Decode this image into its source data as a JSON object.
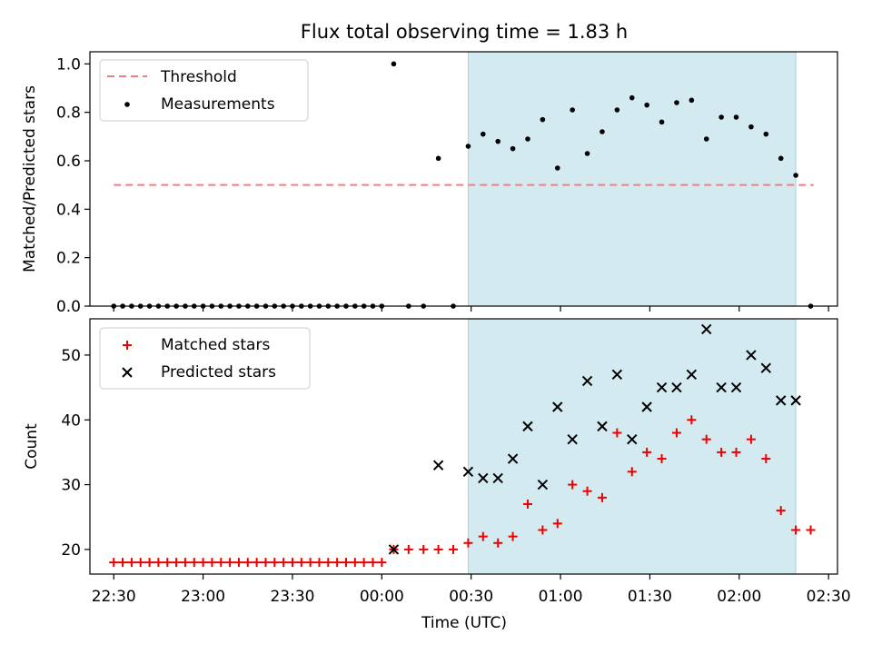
{
  "chart_data": [
    {
      "type": "scatter",
      "title": "Flux total observing time = 1.83 h",
      "xlabel": "",
      "ylabel": "Matched/Predicted stars",
      "ylim": [
        0,
        1.05
      ],
      "yticks": [
        "0.0",
        "0.2",
        "0.4",
        "0.6",
        "0.8",
        "1.0"
      ],
      "xlim": [
        "22:22",
        "02:33"
      ],
      "grid": false,
      "legend_position": "top-left",
      "highlight": {
        "x_start": "00:29",
        "x_end": "02:19",
        "color": "#d4eaf1"
      },
      "threshold": {
        "name": "Threshold",
        "value": 0.5,
        "x_start": "22:30",
        "x_end": "02:25",
        "color": "#f08080"
      },
      "series": [
        {
          "name": "Measurements",
          "color": "#000000",
          "marker": "dot",
          "points": [
            [
              "22:30",
              0
            ],
            [
              "22:33",
              0
            ],
            [
              "22:36",
              0
            ],
            [
              "22:39",
              0
            ],
            [
              "22:42",
              0
            ],
            [
              "22:45",
              0
            ],
            [
              "22:48",
              0
            ],
            [
              "22:51",
              0
            ],
            [
              "22:54",
              0
            ],
            [
              "22:57",
              0
            ],
            [
              "23:00",
              0
            ],
            [
              "23:03",
              0
            ],
            [
              "23:06",
              0
            ],
            [
              "23:09",
              0
            ],
            [
              "23:12",
              0
            ],
            [
              "23:15",
              0
            ],
            [
              "23:18",
              0
            ],
            [
              "23:21",
              0
            ],
            [
              "23:24",
              0
            ],
            [
              "23:27",
              0
            ],
            [
              "23:30",
              0
            ],
            [
              "23:33",
              0
            ],
            [
              "23:36",
              0
            ],
            [
              "23:39",
              0
            ],
            [
              "23:42",
              0
            ],
            [
              "23:45",
              0
            ],
            [
              "23:48",
              0
            ],
            [
              "23:51",
              0
            ],
            [
              "23:54",
              0
            ],
            [
              "23:57",
              0
            ],
            [
              "00:00",
              0
            ],
            [
              "00:04",
              1.0
            ],
            [
              "00:09",
              0
            ],
            [
              "00:14",
              0
            ],
            [
              "00:19",
              0.61
            ],
            [
              "00:24",
              0
            ],
            [
              "00:29",
              0.66
            ],
            [
              "00:34",
              0.71
            ],
            [
              "00:39",
              0.68
            ],
            [
              "00:44",
              0.65
            ],
            [
              "00:49",
              0.69
            ],
            [
              "00:54",
              0.77
            ],
            [
              "00:59",
              0.57
            ],
            [
              "01:04",
              0.81
            ],
            [
              "01:09",
              0.63
            ],
            [
              "01:14",
              0.72
            ],
            [
              "01:19",
              0.81
            ],
            [
              "01:24",
              0.86
            ],
            [
              "01:29",
              0.83
            ],
            [
              "01:34",
              0.76
            ],
            [
              "01:39",
              0.84
            ],
            [
              "01:44",
              0.85
            ],
            [
              "01:49",
              0.69
            ],
            [
              "01:54",
              0.78
            ],
            [
              "01:59",
              0.78
            ],
            [
              "02:04",
              0.74
            ],
            [
              "02:09",
              0.71
            ],
            [
              "02:14",
              0.61
            ],
            [
              "02:19",
              0.54
            ],
            [
              "02:24",
              0
            ]
          ]
        }
      ]
    },
    {
      "type": "scatter",
      "title": "",
      "xlabel": "Time (UTC)",
      "ylabel": "Count",
      "ylim": [
        16.2,
        55.6
      ],
      "yticks": [
        "20",
        "30",
        "40",
        "50"
      ],
      "xticks": [
        "22:30",
        "23:00",
        "23:30",
        "00:00",
        "00:30",
        "01:00",
        "01:30",
        "02:00",
        "02:30"
      ],
      "xlim": [
        "22:22",
        "02:33"
      ],
      "grid": false,
      "legend_position": "top-left",
      "highlight": {
        "x_start": "00:29",
        "x_end": "02:19",
        "color": "#d4eaf1"
      },
      "series": [
        {
          "name": "Matched stars",
          "color": "#ee0000",
          "marker": "plus",
          "points": [
            [
              "22:30",
              18
            ],
            [
              "22:33",
              18
            ],
            [
              "22:36",
              18
            ],
            [
              "22:39",
              18
            ],
            [
              "22:42",
              18
            ],
            [
              "22:45",
              18
            ],
            [
              "22:48",
              18
            ],
            [
              "22:51",
              18
            ],
            [
              "22:54",
              18
            ],
            [
              "22:57",
              18
            ],
            [
              "23:00",
              18
            ],
            [
              "23:03",
              18
            ],
            [
              "23:06",
              18
            ],
            [
              "23:09",
              18
            ],
            [
              "23:12",
              18
            ],
            [
              "23:15",
              18
            ],
            [
              "23:18",
              18
            ],
            [
              "23:21",
              18
            ],
            [
              "23:24",
              18
            ],
            [
              "23:27",
              18
            ],
            [
              "23:30",
              18
            ],
            [
              "23:33",
              18
            ],
            [
              "23:36",
              18
            ],
            [
              "23:39",
              18
            ],
            [
              "23:42",
              18
            ],
            [
              "23:45",
              18
            ],
            [
              "23:48",
              18
            ],
            [
              "23:51",
              18
            ],
            [
              "23:54",
              18
            ],
            [
              "23:57",
              18
            ],
            [
              "00:00",
              18
            ],
            [
              "00:04",
              20
            ],
            [
              "00:09",
              20
            ],
            [
              "00:14",
              20
            ],
            [
              "00:19",
              20
            ],
            [
              "00:24",
              20
            ],
            [
              "00:29",
              21
            ],
            [
              "00:34",
              22
            ],
            [
              "00:39",
              21
            ],
            [
              "00:44",
              22
            ],
            [
              "00:49",
              27
            ],
            [
              "00:54",
              23
            ],
            [
              "00:59",
              24
            ],
            [
              "01:04",
              30
            ],
            [
              "01:09",
              29
            ],
            [
              "01:14",
              28
            ],
            [
              "01:19",
              38
            ],
            [
              "01:24",
              32
            ],
            [
              "01:29",
              35
            ],
            [
              "01:34",
              34
            ],
            [
              "01:39",
              38
            ],
            [
              "01:44",
              40
            ],
            [
              "01:49",
              37
            ],
            [
              "01:54",
              35
            ],
            [
              "01:59",
              35
            ],
            [
              "02:04",
              37
            ],
            [
              "02:09",
              34
            ],
            [
              "02:14",
              26
            ],
            [
              "02:19",
              23
            ],
            [
              "02:24",
              23
            ]
          ]
        },
        {
          "name": "Predicted stars",
          "color": "#000000",
          "marker": "x",
          "points": [
            [
              "00:04",
              20
            ],
            [
              "00:19",
              33
            ],
            [
              "00:29",
              32
            ],
            [
              "00:34",
              31
            ],
            [
              "00:39",
              31
            ],
            [
              "00:44",
              34
            ],
            [
              "00:49",
              39
            ],
            [
              "00:54",
              30
            ],
            [
              "00:59",
              42
            ],
            [
              "01:04",
              37
            ],
            [
              "01:09",
              46
            ],
            [
              "01:14",
              39
            ],
            [
              "01:19",
              47
            ],
            [
              "01:24",
              37
            ],
            [
              "01:29",
              42
            ],
            [
              "01:34",
              45
            ],
            [
              "01:39",
              45
            ],
            [
              "01:44",
              47
            ],
            [
              "01:49",
              54
            ],
            [
              "01:54",
              45
            ],
            [
              "01:59",
              45
            ],
            [
              "02:04",
              50
            ],
            [
              "02:09",
              48
            ],
            [
              "02:14",
              43
            ],
            [
              "02:19",
              43
            ]
          ]
        }
      ]
    }
  ]
}
